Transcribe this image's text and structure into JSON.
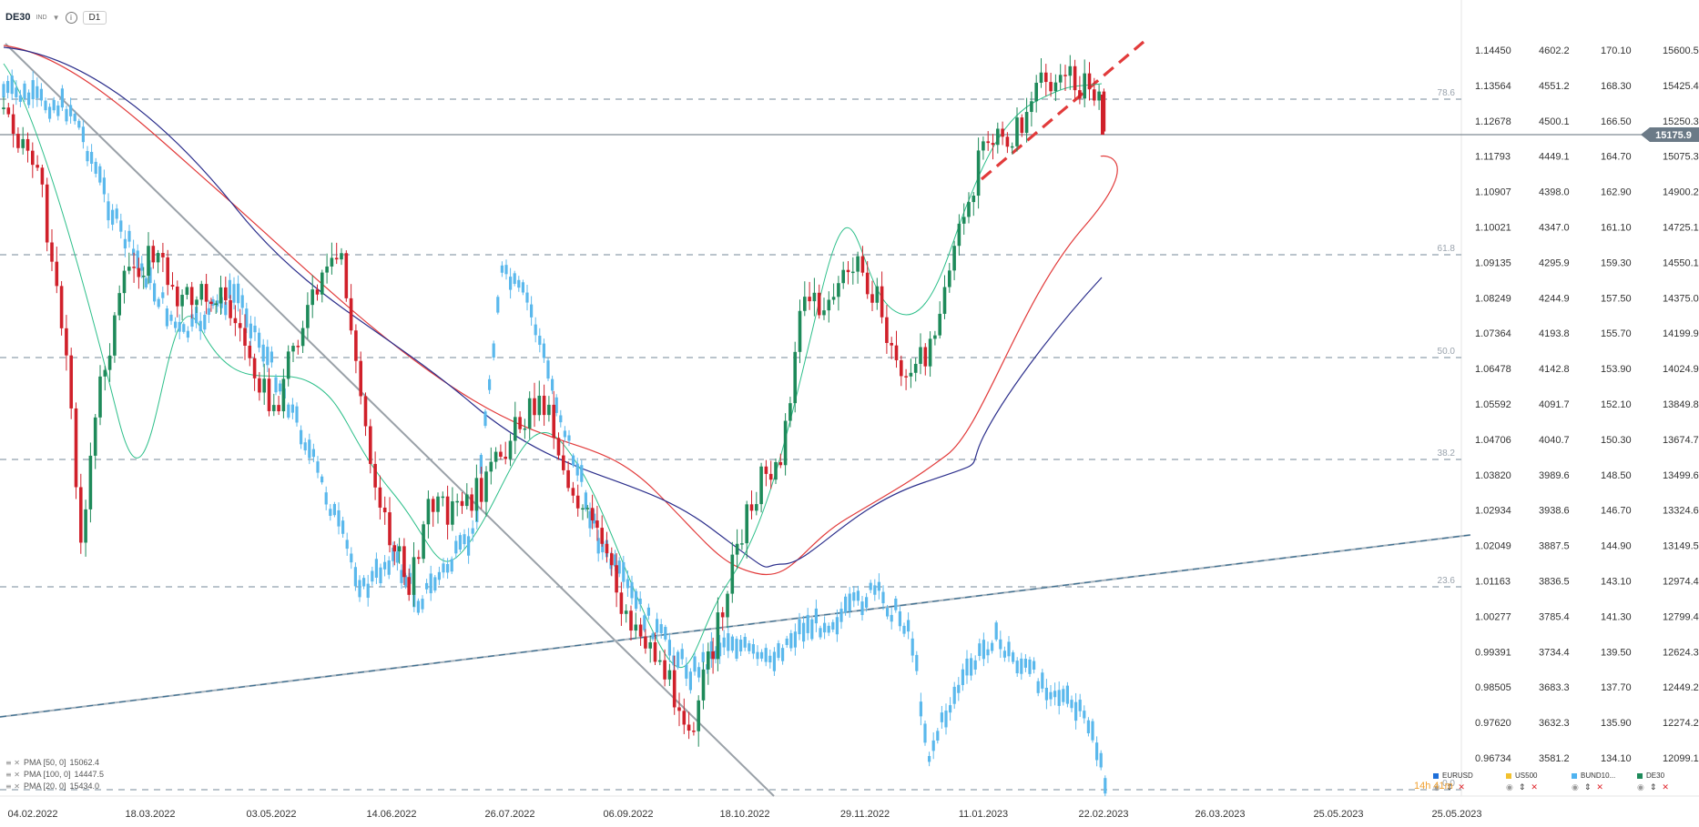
{
  "header": {
    "symbol": "DE30",
    "market": "IND",
    "timeframe": "D1"
  },
  "chart_data": {
    "type": "candlestick",
    "x_ticks": [
      "04.02.2022",
      "18.03.2022",
      "03.05.2022",
      "14.06.2022",
      "26.07.2022",
      "06.09.2022",
      "18.10.2022",
      "29.11.2022",
      "11.01.2023",
      "22.02.2023",
      "26.03.2023",
      "25.05.2023",
      "25.05.2023"
    ],
    "axes": [
      {
        "instrument": "EURUSD",
        "labels": [
          "1.14450",
          "1.13564",
          "1.12678",
          "1.11793",
          "1.10907",
          "1.10021",
          "1.09135",
          "1.08249",
          "1.07364",
          "1.06478",
          "1.05592",
          "1.04706",
          "1.03820",
          "1.02934",
          "1.02049",
          "1.01163",
          "1.00277",
          "0.99391",
          "0.98505",
          "0.97620",
          "0.96734"
        ]
      },
      {
        "instrument": "US500",
        "labels": [
          "4602.2",
          "4551.2",
          "4500.1",
          "4449.1",
          "4398.0",
          "4347.0",
          "4295.9",
          "4244.9",
          "4193.8",
          "4142.8",
          "4091.7",
          "4040.7",
          "3989.6",
          "3938.6",
          "3887.5",
          "3836.5",
          "3785.4",
          "3734.4",
          "3683.3",
          "3632.3",
          "3581.2"
        ]
      },
      {
        "instrument": "BUND10Y",
        "labels": [
          "170.10",
          "168.30",
          "166.50",
          "164.70",
          "162.90",
          "161.10",
          "159.30",
          "157.50",
          "155.70",
          "153.90",
          "152.10",
          "150.30",
          "148.50",
          "146.70",
          "144.90",
          "143.10",
          "141.30",
          "139.50",
          "137.70",
          "135.90",
          "134.10"
        ]
      },
      {
        "instrument": "DE30",
        "labels": [
          "15600.5",
          "15425.4",
          "15250.3",
          "15075.3",
          "14900.2",
          "14725.1",
          "14550.1",
          "14375.0",
          "14199.9",
          "14024.9",
          "13849.8",
          "13674.7",
          "13499.6",
          "13324.6",
          "13149.5",
          "12974.4",
          "12799.4",
          "12624.3",
          "12449.2",
          "12274.2",
          "12099.1"
        ]
      }
    ],
    "current_price": "15175.9",
    "fib_levels": [
      "78.6",
      "61.8",
      "50.0",
      "38.2",
      "23.6",
      "0.0"
    ],
    "moving_averages": [
      {
        "name": "PMA [50, 0]",
        "value": "15062.4",
        "color": "#e23b3b"
      },
      {
        "name": "PMA [100, 0]",
        "value": "14447.5",
        "color": "#2c2f8c"
      },
      {
        "name": "PMA [20, 0]",
        "value": "15434.0",
        "color": "#2dbf8a"
      }
    ],
    "instruments": [
      {
        "name": "EURUSD",
        "color": "#1e6fd9"
      },
      {
        "name": "US500",
        "color": "#f2c12e"
      },
      {
        "name": "BUND10...",
        "color": "#4fb3f0"
      },
      {
        "name": "DE30",
        "color": "#1e8a5a"
      }
    ],
    "countdown": "14h 41m",
    "colors": {
      "up": "#1e8a5a",
      "down": "#d0202a",
      "overlay": "#5ab8ec",
      "trend": "#9aa1a8",
      "dash": "#90a0ad"
    }
  }
}
